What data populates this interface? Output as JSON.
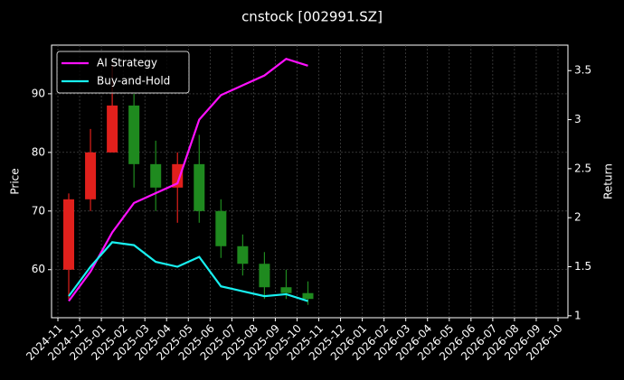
{
  "chart_data": {
    "type": "candlestick",
    "title": "cnstock [002991.SZ]",
    "y_label": "Price",
    "y2_label": "Return",
    "x": [
      "2024-11",
      "2024-12",
      "2025-01",
      "2025-02",
      "2025-03",
      "2025-04",
      "2025-05",
      "2025-06",
      "2025-07",
      "2025-08",
      "2025-09",
      "2025-10"
    ],
    "open": [
      60,
      72,
      80,
      88,
      78,
      74,
      78,
      70,
      64,
      61,
      57,
      56
    ],
    "high": [
      73,
      84,
      95,
      90,
      82,
      80,
      83,
      72,
      66,
      63,
      60,
      58
    ],
    "low": [
      55,
      70,
      80,
      74,
      70,
      68,
      68,
      62,
      59,
      55,
      55,
      54
    ],
    "close": [
      72,
      80,
      88,
      78,
      74,
      78,
      70,
      64,
      61,
      57,
      56,
      55
    ],
    "up_color": "#e0201c",
    "down_color": "#1f8a1f",
    "series": [
      {
        "name": "AI Strategy",
        "color": "#ff10ff",
        "axis": "y2",
        "values": [
          1.15,
          1.45,
          1.85,
          2.15,
          2.25,
          2.35,
          3.0,
          3.25,
          3.35,
          3.45,
          3.62,
          3.55
        ]
      },
      {
        "name": "Buy-and-Hold",
        "color": "#18f0f0",
        "axis": "y2",
        "values": [
          1.2,
          1.5,
          1.75,
          1.72,
          1.55,
          1.5,
          1.6,
          1.3,
          1.25,
          1.2,
          1.22,
          1.15
        ]
      }
    ],
    "ylim": [
      51.8,
      98.3
    ],
    "yticks": [
      60,
      70,
      80,
      90
    ],
    "y2lim": [
      0.98,
      3.76
    ],
    "y2ticks": [
      1.0,
      1.5,
      2.0,
      2.5,
      3.0,
      3.5
    ],
    "xticks": [
      "2024-11",
      "2024-12",
      "2025-01",
      "2025-02",
      "2025-03",
      "2025-04",
      "2025-05",
      "2025-06",
      "2025-07",
      "2025-08",
      "2025-09",
      "2025-10",
      "2025-11",
      "2025-12",
      "2026-01",
      "2026-02",
      "2026-03",
      "2026-04",
      "2026-05",
      "2026-06",
      "2026-07",
      "2026-08",
      "2026-09",
      "2026-10"
    ],
    "grid": true,
    "legend": "upper left"
  }
}
